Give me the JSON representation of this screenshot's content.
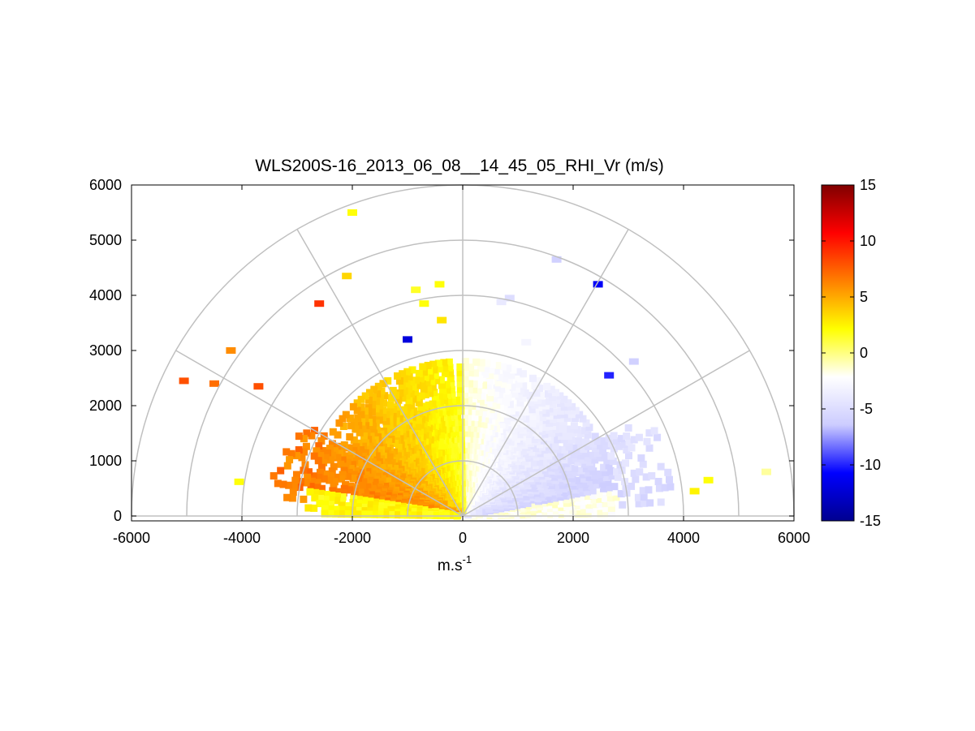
{
  "chart_data": {
    "type": "heatmap",
    "subtype": "polar RHI scan (half-disk)",
    "title": "WLS200S-16_2013_06_08__14_45_05_RHI_Vr (m/s)",
    "xlabel": "m.s",
    "xlabel_superscript": "-1",
    "ylabel": "",
    "xlim": [
      -6000,
      6000
    ],
    "ylim": [
      0,
      6000
    ],
    "x_ticks": [
      "-6000",
      "-4000",
      "-2000",
      "0",
      "2000",
      "4000",
      "6000"
    ],
    "y_ticks": [
      "0",
      "1000",
      "2000",
      "3000",
      "4000",
      "5000",
      "6000"
    ],
    "polar_grid": {
      "range_rings": [
        1000,
        2000,
        3000,
        4000,
        5000,
        6000
      ],
      "azimuth_spokes_deg": [
        0,
        30,
        60,
        90,
        120,
        150,
        180
      ],
      "color": "#c0c0c0"
    },
    "colorbar": {
      "label_ticks": [
        "15",
        "10",
        "5",
        "0",
        "-5",
        "-10",
        "-15"
      ],
      "range": [
        -15,
        15
      ],
      "colormap": [
        "#00008f",
        "#0000ff",
        "#ccccff",
        "#ffffff",
        "#ffff00",
        "#ff7f00",
        "#ff0000",
        "#800000"
      ]
    },
    "wind_field": {
      "max_dense_range": 2800,
      "left_sector_sign": "positive (approaching toward -x)",
      "right_sector_sign": "negative",
      "scattered_returns": [
        {
          "x": -5050,
          "y": 2450,
          "v": 8.0
        },
        {
          "x": -4500,
          "y": 2400,
          "v": 7.0
        },
        {
          "x": -4200,
          "y": 3000,
          "v": 6.0
        },
        {
          "x": -2600,
          "y": 3850,
          "v": 9.0
        },
        {
          "x": -2100,
          "y": 4350,
          "v": 3.5
        },
        {
          "x": -2000,
          "y": 5500,
          "v": 2.0
        },
        {
          "x": -850,
          "y": 4100,
          "v": 1.5
        },
        {
          "x": -420,
          "y": 4200,
          "v": 2.0
        },
        {
          "x": -700,
          "y": 3850,
          "v": 2.0
        },
        {
          "x": -380,
          "y": 3550,
          "v": 3.0
        },
        {
          "x": -1000,
          "y": 3200,
          "v": -12.0
        },
        {
          "x": 1700,
          "y": 4650,
          "v": -6.0
        },
        {
          "x": 2450,
          "y": 4200,
          "v": -11.0
        },
        {
          "x": 850,
          "y": 3950,
          "v": -5.0
        },
        {
          "x": 700,
          "y": 3880,
          "v": -4.0
        },
        {
          "x": 1150,
          "y": 3150,
          "v": -3.0
        },
        {
          "x": 3100,
          "y": 2800,
          "v": -6.0
        },
        {
          "x": 2650,
          "y": 2550,
          "v": -10.0
        },
        {
          "x": 5500,
          "y": 800,
          "v": -0.5
        },
        {
          "x": 4450,
          "y": 650,
          "v": 2.0
        },
        {
          "x": 4200,
          "y": 450,
          "v": 2.5
        },
        {
          "x": -4050,
          "y": 620,
          "v": 2.0
        },
        {
          "x": -3700,
          "y": 2350,
          "v": 8.0
        }
      ]
    }
  }
}
